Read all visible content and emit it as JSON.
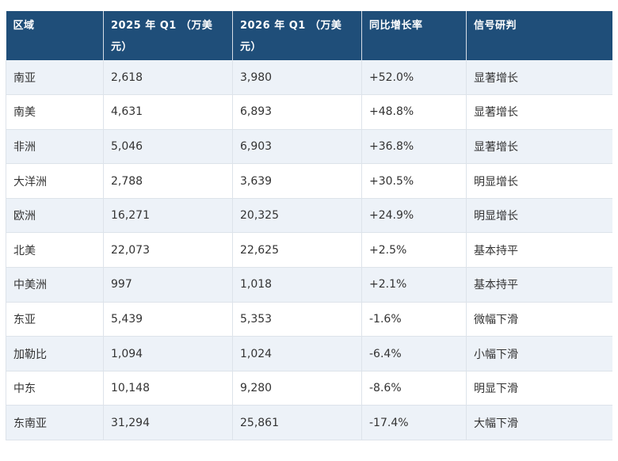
{
  "table": {
    "headers": [
      "区域",
      "2025 年 Q1 （万美元）",
      "2026 年 Q1 （万美元）",
      "同比增长率",
      "信号研判"
    ],
    "rows": [
      [
        "南亚",
        "2,618",
        "3,980",
        "+52.0%",
        "显著增长"
      ],
      [
        "南美",
        "4,631",
        "6,893",
        "+48.8%",
        "显著增长"
      ],
      [
        "非洲",
        "5,046",
        "6,903",
        "+36.8%",
        "显著增长"
      ],
      [
        "大洋洲",
        "2,788",
        "3,639",
        "+30.5%",
        "明显增长"
      ],
      [
        "欧洲",
        "16,271",
        "20,325",
        "+24.9%",
        "明显增长"
      ],
      [
        "北美",
        "22,073",
        "22,625",
        "+2.5%",
        "基本持平"
      ],
      [
        "中美洲",
        "997",
        "1,018",
        "+2.1%",
        "基本持平"
      ],
      [
        "东亚",
        "5,439",
        "5,353",
        "-1.6%",
        "微幅下滑"
      ],
      [
        "加勒比",
        "1,094",
        "1,024",
        "-6.4%",
        "小幅下滑"
      ],
      [
        "中东",
        "10,148",
        "9,280",
        "-8.6%",
        "明显下滑"
      ],
      [
        "东南亚",
        "31,294",
        "25,861",
        "-17.4%",
        "大幅下滑"
      ]
    ]
  },
  "colors": {
    "header_bg": "#1f4e79",
    "header_text": "#ffffff",
    "row_alt_bg": "#edf2f8",
    "row_bg": "#ffffff",
    "text": "#333333"
  }
}
